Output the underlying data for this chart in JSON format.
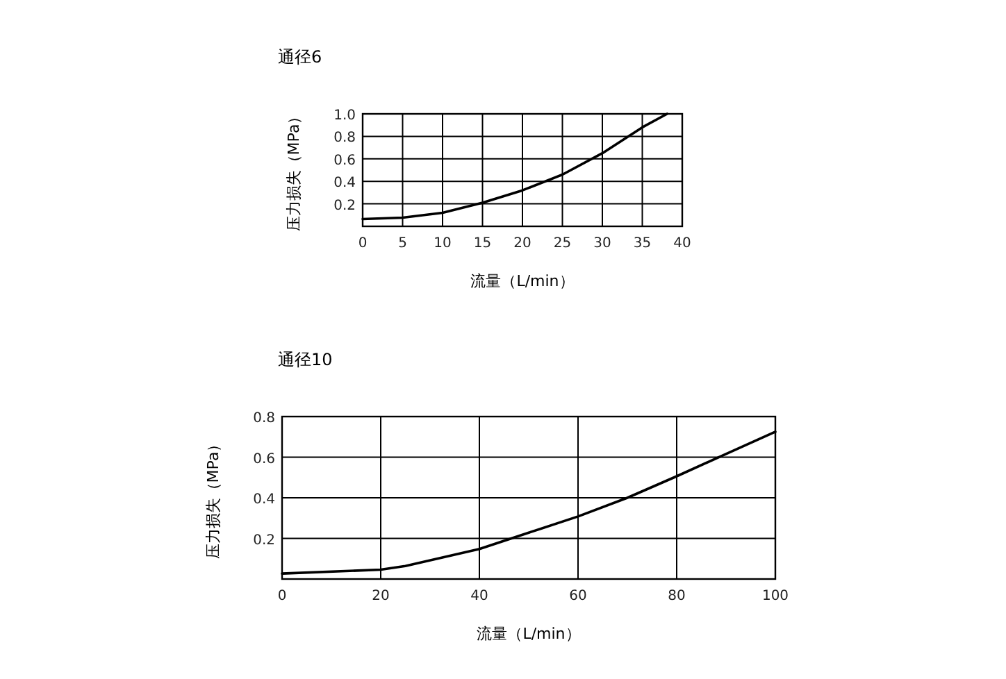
{
  "chart_data": [
    {
      "type": "line",
      "title": "通径6",
      "xlabel": "流量（L/min）",
      "ylabel": "压力损失（MPa）",
      "xlim": [
        0,
        40
      ],
      "ylim": [
        0,
        1
      ],
      "xticks": [
        0,
        5,
        10,
        15,
        20,
        25,
        30,
        35,
        40
      ],
      "yticks": [
        0.2,
        0.4,
        0.6,
        0.8,
        {
          "value": 1,
          "label": "1.0"
        }
      ],
      "grid": true,
      "series": [
        {
          "color": "#000000",
          "x": [
            0,
            5,
            10,
            15,
            20,
            25,
            30,
            35,
            38.1
          ],
          "values": [
            0.065,
            0.077,
            0.12,
            0.21,
            0.32,
            0.46,
            0.65,
            0.88,
            1.0
          ]
        }
      ]
    },
    {
      "type": "line",
      "title": "通径10",
      "xlabel": "流量（L/min）",
      "ylabel": "压力损失（MPa）",
      "xlim": [
        0,
        100
      ],
      "ylim": [
        0,
        0.8
      ],
      "xticks": [
        0,
        20,
        40,
        60,
        80,
        100
      ],
      "yticks": [
        0.2,
        0.4,
        0.6,
        0.8
      ],
      "grid": true,
      "series": [
        {
          "color": "#000000",
          "x": [
            0,
            20,
            25,
            40,
            50,
            60,
            70,
            80,
            90,
            100
          ],
          "values": [
            0.027,
            0.046,
            0.064,
            0.148,
            0.228,
            0.308,
            0.4,
            0.506,
            0.616,
            0.725
          ]
        }
      ]
    }
  ]
}
